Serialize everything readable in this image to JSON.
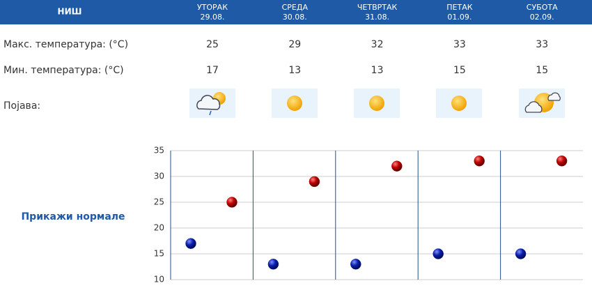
{
  "table": {
    "city": "НИШ",
    "days": [
      {
        "name": "УТОРАК",
        "date": "29.08."
      },
      {
        "name": "СРЕДА",
        "date": "30.08."
      },
      {
        "name": "ЧЕТВРТАК",
        "date": "31.08."
      },
      {
        "name": "ПЕТАК",
        "date": "01.09."
      },
      {
        "name": "СУБОТА",
        "date": "02.09."
      }
    ],
    "rows": [
      {
        "label": "Макс. температура: (°C)",
        "values": [
          25,
          29,
          32,
          33,
          33
        ],
        "color": "#c00000"
      },
      {
        "label": "Мин. температура: (°C)",
        "values": [
          17,
          13,
          13,
          15,
          15
        ],
        "color": "#0a1fa8"
      }
    ],
    "phenomenon_label": "Појава:"
  },
  "link": "Прикажи нормале",
  "chart": {
    "type": "scatter",
    "ylim": [
      10,
      35
    ],
    "yticks": [
      10,
      15,
      20,
      25,
      30,
      35
    ],
    "grid": true
  }
}
